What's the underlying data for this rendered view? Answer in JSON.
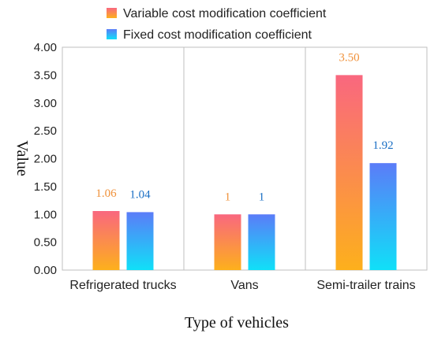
{
  "chart_data": {
    "type": "bar",
    "title": "",
    "xlabel": "Type of vehicles",
    "ylabel": "Value",
    "ylim": [
      0,
      4
    ],
    "yticks": [
      "0.00",
      "0.50",
      "1.00",
      "1.50",
      "2.00",
      "2.50",
      "3.00",
      "3.50",
      "4.00"
    ],
    "categories": [
      "Refrigerated trucks",
      "Vans",
      "Semi-trailer trains"
    ],
    "grid": "vertical category separators",
    "legend_position": "top",
    "series": [
      {
        "name": "Variable cost modification coefficient",
        "values": [
          1.06,
          1,
          3.5
        ],
        "labels": [
          "1.06",
          "1",
          "3.50"
        ],
        "color_top": "#f9677f",
        "color_bottom": "#fdb01c",
        "label_color": "#f0913a"
      },
      {
        "name": "Fixed cost modification coefficient",
        "values": [
          1.04,
          1,
          1.92
        ],
        "labels": [
          "1.04",
          "1",
          "1.92"
        ],
        "color_top": "#5b7cf8",
        "color_bottom": "#10e0f8",
        "label_color": "#1a6fc4"
      }
    ]
  }
}
